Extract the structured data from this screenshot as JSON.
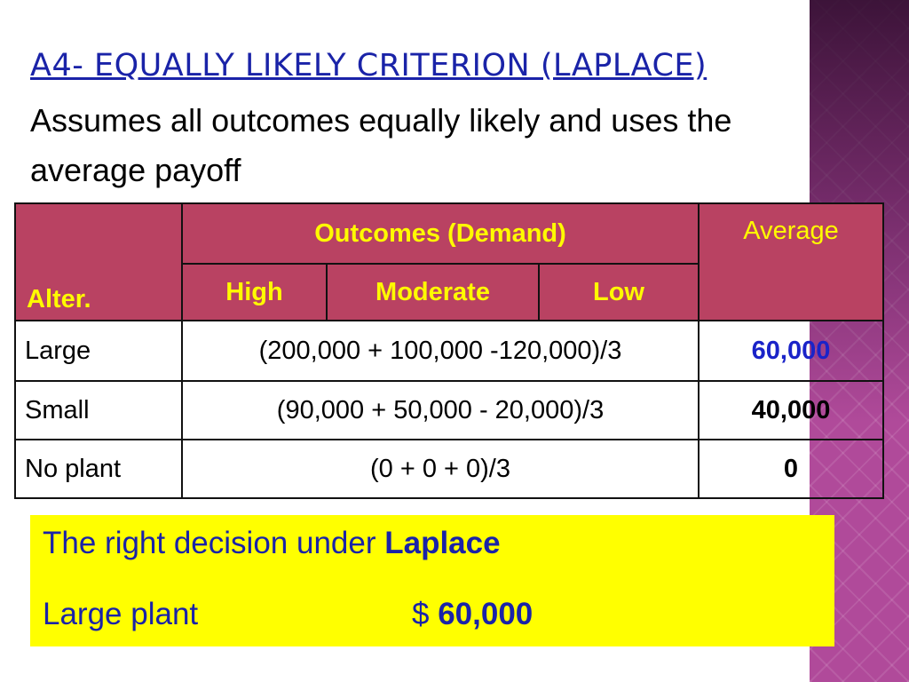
{
  "slide": {
    "title": "A4- EQUALLY LIKELY CRITERION (LAPLACE)",
    "subtitle": "Assumes all outcomes equally likely and uses the average payoff"
  },
  "table": {
    "header": {
      "alternative": "Alter.",
      "outcomes_group": "Outcomes (Demand)",
      "average": "Average",
      "outcomes": [
        "High",
        "Moderate",
        "Low"
      ]
    },
    "rows": [
      {
        "alternative": "Large",
        "formula": "(200,000 + 100,000 -120,000)/3",
        "average": "60,000"
      },
      {
        "alternative": "Small",
        "formula": "(90,000 + 50,000 - 20,000)/3",
        "average": "40,000"
      },
      {
        "alternative": "No plant",
        "formula": "(0 + 0 + 0)/3",
        "average": "0"
      }
    ]
  },
  "conclusion": {
    "line1_prefix": "The right decision under ",
    "line1_bold": "Laplace",
    "line2_label": "Large plant",
    "line2_currency": "$ ",
    "line2_value": "60,000"
  },
  "colors": {
    "title": "#1a23a8",
    "header_bg": "#b94262",
    "header_text": "#fffb00",
    "best_value": "#1a23c8",
    "banner_bg": "#ffff00",
    "side_strip": "#b04a9a"
  }
}
